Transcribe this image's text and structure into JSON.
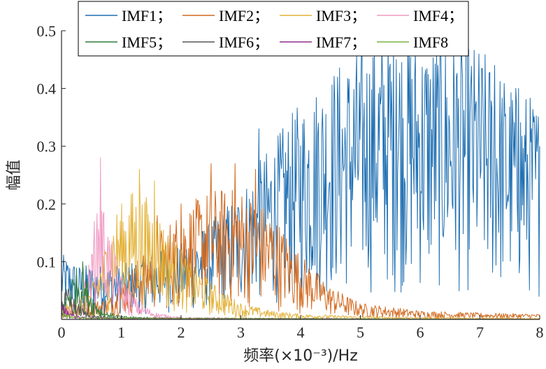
{
  "chart_data": {
    "type": "line",
    "xlabel": "频率(×10⁻³)/Hz",
    "ylabel": "幅值",
    "xlim": [
      0,
      8
    ],
    "ylim": [
      0,
      0.5
    ],
    "xticks": [
      0,
      1,
      2,
      3,
      4,
      5,
      6,
      7,
      8
    ],
    "xtick_labels": [
      "0",
      "1",
      "2",
      "3",
      "4",
      "5",
      "6",
      "7",
      "8"
    ],
    "yticks": [
      0.1,
      0.2,
      0.3,
      0.4,
      0.5
    ],
    "ytick_labels": [
      "0.1",
      "0.2",
      "0.3",
      "0.4",
      "0.5"
    ],
    "grid": false,
    "legend": {
      "placement": "top",
      "columns": 4,
      "entries": [
        "IMF1；",
        "IMF2；",
        "IMF3；",
        "IMF4；",
        "IMF5；",
        "IMF6；",
        "IMF7；",
        "IMF8"
      ]
    },
    "series": [
      {
        "name": "IMF1",
        "color": "#1f6fb2",
        "x_range": [
          0,
          8
        ],
        "envelope": [
          [
            0,
            0.06
          ],
          [
            0.3,
            0.05
          ],
          [
            0.6,
            0.05
          ],
          [
            1.0,
            0.05
          ],
          [
            1.5,
            0.06
          ],
          [
            2.0,
            0.07
          ],
          [
            2.5,
            0.09
          ],
          [
            3.0,
            0.12
          ],
          [
            3.5,
            0.16
          ],
          [
            4.0,
            0.2
          ],
          [
            4.5,
            0.23
          ],
          [
            5.0,
            0.25
          ],
          [
            5.5,
            0.27
          ],
          [
            6.0,
            0.26
          ],
          [
            6.5,
            0.26
          ],
          [
            7.0,
            0.25
          ],
          [
            7.5,
            0.22
          ],
          [
            8.0,
            0.2
          ]
        ],
        "peaks": [
          [
            3.3,
            0.33
          ],
          [
            4.3,
            0.34
          ],
          [
            5.6,
            0.45
          ],
          [
            5.0,
            0.39
          ],
          [
            6.6,
            0.42
          ],
          [
            7.25,
            0.44
          ],
          [
            7.65,
            0.4
          ],
          [
            8.0,
            0.3
          ]
        ]
      },
      {
        "name": "IMF2",
        "color": "#d2691e",
        "x_range": [
          0,
          8
        ],
        "envelope": [
          [
            0,
            0.01
          ],
          [
            0.8,
            0.02
          ],
          [
            1.2,
            0.05
          ],
          [
            1.6,
            0.08
          ],
          [
            2.0,
            0.1
          ],
          [
            2.5,
            0.12
          ],
          [
            3.0,
            0.12
          ],
          [
            3.5,
            0.1
          ],
          [
            4.0,
            0.06
          ],
          [
            4.5,
            0.03
          ],
          [
            5.0,
            0.015
          ],
          [
            6.0,
            0.008
          ],
          [
            7.0,
            0.006
          ],
          [
            8.0,
            0.005
          ]
        ],
        "peaks": [
          [
            2.5,
            0.27
          ],
          [
            2.9,
            0.27
          ],
          [
            3.25,
            0.26
          ],
          [
            2.0,
            0.2
          ],
          [
            1.6,
            0.18
          ]
        ]
      },
      {
        "name": "IMF3",
        "color": "#e3b237",
        "x_range": [
          0,
          8
        ],
        "envelope": [
          [
            0,
            0.01
          ],
          [
            0.5,
            0.03
          ],
          [
            0.9,
            0.1
          ],
          [
            1.2,
            0.12
          ],
          [
            1.5,
            0.11
          ],
          [
            1.8,
            0.08
          ],
          [
            2.2,
            0.05
          ],
          [
            2.6,
            0.03
          ],
          [
            3.0,
            0.015
          ],
          [
            3.5,
            0.008
          ],
          [
            4.0,
            0.005
          ],
          [
            5.0,
            0.003
          ],
          [
            6.0,
            0.002
          ],
          [
            8.0,
            0.001
          ]
        ],
        "peaks": [
          [
            1.3,
            0.26
          ],
          [
            1.55,
            0.24
          ],
          [
            1.0,
            0.2
          ]
        ]
      },
      {
        "name": "IMF4",
        "color": "#f09ac4",
        "x_range": [
          0,
          8
        ],
        "envelope": [
          [
            0,
            0.005
          ],
          [
            0.3,
            0.02
          ],
          [
            0.5,
            0.06
          ],
          [
            0.65,
            0.12
          ],
          [
            0.8,
            0.08
          ],
          [
            1.0,
            0.04
          ],
          [
            1.3,
            0.015
          ],
          [
            1.6,
            0.006
          ],
          [
            2.0,
            0.002
          ],
          [
            3.0,
            0.001
          ],
          [
            8.0,
            0.0
          ]
        ],
        "peaks": [
          [
            0.65,
            0.28
          ],
          [
            0.55,
            0.17
          ]
        ]
      },
      {
        "name": "IMF5",
        "color": "#2e7d3c",
        "x_range": [
          0,
          8
        ],
        "envelope": [
          [
            0,
            0.01
          ],
          [
            0.1,
            0.03
          ],
          [
            0.2,
            0.045
          ],
          [
            0.3,
            0.05
          ],
          [
            0.4,
            0.04
          ],
          [
            0.55,
            0.02
          ],
          [
            0.7,
            0.008
          ],
          [
            1.0,
            0.003
          ],
          [
            2.0,
            0.001
          ],
          [
            8.0,
            0.0
          ]
        ],
        "peaks": [
          [
            0.35,
            0.1
          ]
        ]
      },
      {
        "name": "IMF6",
        "color": "#555555",
        "x_range": [
          0,
          8
        ],
        "envelope": [
          [
            0,
            0.02
          ],
          [
            0.1,
            0.03
          ],
          [
            0.2,
            0.02
          ],
          [
            0.35,
            0.01
          ],
          [
            0.5,
            0.004
          ],
          [
            1.0,
            0.001
          ],
          [
            8.0,
            0.0
          ]
        ],
        "peaks": [
          [
            0.1,
            0.04
          ]
        ]
      },
      {
        "name": "IMF7",
        "color": "#8b2e8b",
        "x_range": [
          0,
          8
        ],
        "envelope": [
          [
            0,
            0.015
          ],
          [
            0.1,
            0.01
          ],
          [
            0.2,
            0.005
          ],
          [
            0.4,
            0.002
          ],
          [
            8.0,
            0.0
          ]
        ],
        "peaks": []
      },
      {
        "name": "IMF8",
        "color": "#7cb342",
        "x_range": [
          0,
          8
        ],
        "envelope": [
          [
            0,
            0.01
          ],
          [
            0.1,
            0.006
          ],
          [
            0.3,
            0.002
          ],
          [
            8.0,
            0.0
          ]
        ],
        "peaks": []
      }
    ]
  }
}
